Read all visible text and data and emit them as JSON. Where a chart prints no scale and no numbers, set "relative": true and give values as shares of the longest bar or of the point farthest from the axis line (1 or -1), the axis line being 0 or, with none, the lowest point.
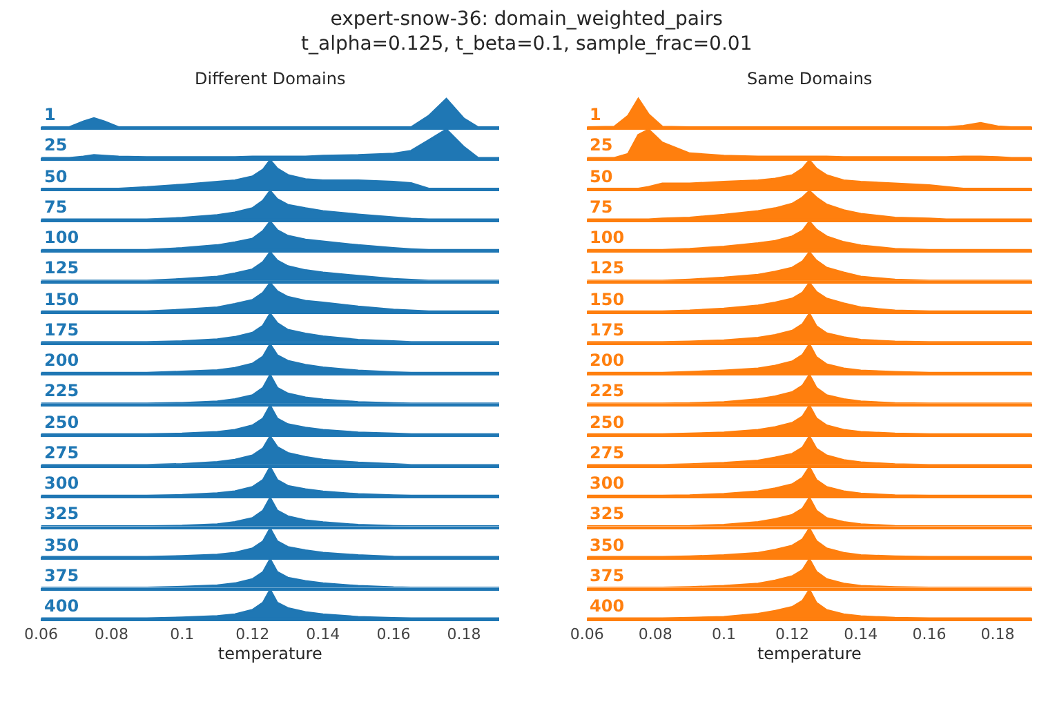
{
  "chart_data": [
    {
      "type": "area",
      "relative": true,
      "title": "Different Domains",
      "annotations": [
        "expert-snow-36: domain_weighted_pairs\nt_alpha=0.125, t_beta=0.1, sample_frac=0.01"
      ],
      "xlim": [
        0.06,
        0.19
      ],
      "tick_labels": false,
      "x": [
        0.06,
        0.068,
        0.072,
        0.075,
        0.078,
        0.082,
        0.09,
        0.1,
        0.11,
        0.115,
        0.12,
        0.123,
        0.125,
        0.127,
        0.13,
        0.135,
        0.14,
        0.15,
        0.16,
        0.165,
        0.17,
        0.175,
        0.18,
        0.184,
        0.19
      ],
      "series": [
        {
          "name": "1",
          "color": "#1f77b4",
          "values": [
            0,
            0,
            0.2,
            0.32,
            0.2,
            0,
            0,
            0,
            0,
            0,
            0,
            0,
            0,
            0,
            0,
            0,
            0,
            0,
            0,
            0,
            0.4,
            1,
            0.3,
            0,
            0
          ]
        }
      ]
    },
    {
      "type": "area",
      "relative": true,
      "xlim": [
        0.06,
        0.19
      ],
      "tick_labels": false,
      "x": [
        0.06,
        0.068,
        0.072,
        0.075,
        0.078,
        0.082,
        0.09,
        0.1,
        0.11,
        0.115,
        0.12,
        0.123,
        0.125,
        0.127,
        0.13,
        0.135,
        0.14,
        0.15,
        0.16,
        0.165,
        0.17,
        0.175,
        0.18,
        0.184,
        0.19
      ],
      "series": [
        {
          "name": "25",
          "color": "#1f77b4",
          "values": [
            0,
            0,
            0.05,
            0.1,
            0.08,
            0.05,
            0.03,
            0.03,
            0.03,
            0.03,
            0.05,
            0.05,
            0.05,
            0.05,
            0.05,
            0.05,
            0.08,
            0.1,
            0.15,
            0.25,
            0.62,
            1,
            0.38,
            0,
            0
          ]
        }
      ]
    },
    {
      "type": "area",
      "relative": true,
      "xlim": [
        0.06,
        0.19
      ],
      "tick_labels": false,
      "x": [
        0.06,
        0.068,
        0.072,
        0.075,
        0.078,
        0.082,
        0.09,
        0.1,
        0.11,
        0.115,
        0.12,
        0.123,
        0.125,
        0.127,
        0.13,
        0.135,
        0.14,
        0.15,
        0.16,
        0.165,
        0.17,
        0.175,
        0.18,
        0.184,
        0.19
      ],
      "series": [
        {
          "name": "50",
          "color": "#1f77b4",
          "values": [
            0,
            0,
            0,
            0,
            0,
            0,
            0.05,
            0.14,
            0.24,
            0.29,
            0.43,
            0.67,
            1,
            0.71,
            0.48,
            0.33,
            0.29,
            0.29,
            0.24,
            0.19,
            0,
            0,
            0,
            0,
            0
          ]
        }
      ]
    },
    {
      "type": "area",
      "relative": true,
      "xlim": [
        0.06,
        0.19
      ],
      "tick_labels": false,
      "x": [
        0.06,
        0.068,
        0.072,
        0.075,
        0.078,
        0.082,
        0.09,
        0.1,
        0.11,
        0.115,
        0.12,
        0.123,
        0.125,
        0.127,
        0.13,
        0.135,
        0.14,
        0.15,
        0.16,
        0.165,
        0.17,
        0.175,
        0.18,
        0.184,
        0.19
      ],
      "series": [
        {
          "name": "75",
          "color": "#1f77b4",
          "values": [
            0,
            0,
            0,
            0,
            0,
            0,
            0,
            0.05,
            0.15,
            0.24,
            0.39,
            0.66,
            1,
            0.71,
            0.51,
            0.39,
            0.29,
            0.17,
            0.07,
            0.02,
            0,
            0,
            0,
            0,
            0
          ]
        }
      ]
    },
    {
      "type": "area",
      "relative": true,
      "xlim": [
        0.06,
        0.19
      ],
      "tick_labels": false,
      "x": [
        0.06,
        0.068,
        0.072,
        0.075,
        0.078,
        0.082,
        0.09,
        0.1,
        0.11,
        0.115,
        0.12,
        0.123,
        0.125,
        0.127,
        0.13,
        0.135,
        0.14,
        0.15,
        0.16,
        0.165,
        0.17,
        0.175,
        0.18,
        0.184,
        0.19
      ],
      "series": [
        {
          "name": "100",
          "color": "#1f77b4",
          "values": [
            0,
            0,
            0,
            0,
            0,
            0,
            0,
            0.07,
            0.17,
            0.27,
            0.4,
            0.67,
            1,
            0.7,
            0.5,
            0.37,
            0.3,
            0.17,
            0.07,
            0.03,
            0,
            0,
            0,
            0,
            0
          ]
        }
      ]
    },
    {
      "type": "area",
      "relative": true,
      "xlim": [
        0.06,
        0.19
      ],
      "tick_labels": false,
      "x": [
        0.06,
        0.068,
        0.072,
        0.075,
        0.078,
        0.082,
        0.09,
        0.1,
        0.11,
        0.115,
        0.12,
        0.123,
        0.125,
        0.127,
        0.13,
        0.135,
        0.14,
        0.15,
        0.16,
        0.165,
        0.17,
        0.175,
        0.18,
        0.184,
        0.19
      ],
      "series": [
        {
          "name": "125",
          "color": "#1f77b4",
          "values": [
            0,
            0,
            0,
            0,
            0,
            0,
            0,
            0.06,
            0.14,
            0.26,
            0.4,
            0.66,
            1,
            0.71,
            0.51,
            0.37,
            0.29,
            0.17,
            0.06,
            0.03,
            0,
            0,
            0,
            0,
            0
          ]
        }
      ]
    },
    {
      "type": "area",
      "relative": true,
      "xlim": [
        0.06,
        0.19
      ],
      "tick_labels": false,
      "x": [
        0.06,
        0.068,
        0.072,
        0.075,
        0.078,
        0.082,
        0.09,
        0.1,
        0.11,
        0.115,
        0.12,
        0.123,
        0.125,
        0.127,
        0.13,
        0.135,
        0.14,
        0.15,
        0.16,
        0.165,
        0.17,
        0.175,
        0.18,
        0.184,
        0.19
      ],
      "series": [
        {
          "name": "150",
          "color": "#1f77b4",
          "values": [
            0,
            0,
            0,
            0,
            0,
            0,
            0,
            0.06,
            0.14,
            0.26,
            0.4,
            0.66,
            1,
            0.71,
            0.51,
            0.37,
            0.31,
            0.17,
            0.06,
            0.03,
            0,
            0,
            0,
            0,
            0
          ]
        }
      ]
    },
    {
      "type": "area",
      "relative": true,
      "xlim": [
        0.06,
        0.19
      ],
      "tick_labels": false,
      "x": [
        0.06,
        0.068,
        0.072,
        0.075,
        0.078,
        0.082,
        0.09,
        0.1,
        0.11,
        0.115,
        0.12,
        0.123,
        0.125,
        0.127,
        0.13,
        0.135,
        0.14,
        0.15,
        0.16,
        0.165,
        0.17,
        0.175,
        0.18,
        0.184,
        0.19
      ],
      "series": [
        {
          "name": "175",
          "color": "#1f77b4",
          "values": [
            0,
            0,
            0,
            0,
            0,
            0,
            0,
            0.03,
            0.1,
            0.18,
            0.33,
            0.58,
            1,
            0.67,
            0.43,
            0.3,
            0.2,
            0.08,
            0.03,
            0,
            0,
            0,
            0,
            0,
            0
          ]
        }
      ]
    },
    {
      "type": "area",
      "relative": true,
      "xlim": [
        0.06,
        0.19
      ],
      "tick_labels": false,
      "x": [
        0.06,
        0.068,
        0.072,
        0.075,
        0.078,
        0.082,
        0.09,
        0.1,
        0.11,
        0.115,
        0.12,
        0.123,
        0.125,
        0.127,
        0.13,
        0.135,
        0.14,
        0.15,
        0.16,
        0.165,
        0.17,
        0.175,
        0.18,
        0.184,
        0.19
      ],
      "series": [
        {
          "name": "200",
          "color": "#1f77b4",
          "values": [
            0,
            0,
            0,
            0,
            0,
            0,
            0,
            0.04,
            0.09,
            0.17,
            0.32,
            0.57,
            1,
            0.62,
            0.42,
            0.28,
            0.19,
            0.08,
            0.02,
            0,
            0,
            0,
            0,
            0,
            0
          ]
        }
      ]
    },
    {
      "type": "area",
      "relative": true,
      "xlim": [
        0.06,
        0.19
      ],
      "tick_labels": false,
      "x": [
        0.06,
        0.068,
        0.072,
        0.075,
        0.078,
        0.082,
        0.09,
        0.1,
        0.11,
        0.115,
        0.12,
        0.123,
        0.125,
        0.127,
        0.13,
        0.135,
        0.14,
        0.15,
        0.16,
        0.165,
        0.17,
        0.175,
        0.18,
        0.184,
        0.19
      ],
      "series": [
        {
          "name": "225",
          "color": "#1f77b4",
          "values": [
            0,
            0,
            0,
            0,
            0,
            0,
            0,
            0.02,
            0.07,
            0.15,
            0.29,
            0.55,
            1,
            0.55,
            0.35,
            0.21,
            0.14,
            0.05,
            0.01,
            0,
            0,
            0,
            0,
            0,
            0
          ]
        }
      ]
    },
    {
      "type": "area",
      "relative": true,
      "xlim": [
        0.06,
        0.19
      ],
      "tick_labels": false,
      "x": [
        0.06,
        0.068,
        0.072,
        0.075,
        0.078,
        0.082,
        0.09,
        0.1,
        0.11,
        0.115,
        0.12,
        0.123,
        0.125,
        0.127,
        0.13,
        0.135,
        0.14,
        0.15,
        0.16,
        0.165,
        0.17,
        0.175,
        0.18,
        0.184,
        0.19
      ],
      "series": [
        {
          "name": "250",
          "color": "#1f77b4",
          "values": [
            0,
            0,
            0,
            0,
            0,
            0,
            0,
            0.02,
            0.08,
            0.15,
            0.31,
            0.55,
            1,
            0.55,
            0.35,
            0.23,
            0.15,
            0.06,
            0.02,
            0,
            0,
            0,
            0,
            0,
            0
          ]
        }
      ]
    },
    {
      "type": "area",
      "relative": true,
      "xlim": [
        0.06,
        0.19
      ],
      "tick_labels": false,
      "x": [
        0.06,
        0.068,
        0.072,
        0.075,
        0.078,
        0.082,
        0.09,
        0.1,
        0.11,
        0.115,
        0.12,
        0.123,
        0.125,
        0.127,
        0.13,
        0.135,
        0.14,
        0.15,
        0.16,
        0.165,
        0.17,
        0.175,
        0.18,
        0.184,
        0.19
      ],
      "series": [
        {
          "name": "275",
          "color": "#1f77b4",
          "values": [
            0,
            0,
            0,
            0,
            0,
            0,
            0,
            0.03,
            0.1,
            0.18,
            0.33,
            0.58,
            1,
            0.63,
            0.42,
            0.28,
            0.18,
            0.08,
            0.03,
            0,
            0,
            0,
            0,
            0,
            0
          ]
        }
      ]
    },
    {
      "type": "area",
      "relative": true,
      "xlim": [
        0.06,
        0.19
      ],
      "tick_labels": false,
      "x": [
        0.06,
        0.068,
        0.072,
        0.075,
        0.078,
        0.082,
        0.09,
        0.1,
        0.11,
        0.115,
        0.12,
        0.123,
        0.125,
        0.127,
        0.13,
        0.135,
        0.14,
        0.15,
        0.16,
        0.165,
        0.17,
        0.175,
        0.18,
        0.184,
        0.19
      ],
      "series": [
        {
          "name": "300",
          "color": "#1f77b4",
          "values": [
            0,
            0,
            0,
            0,
            0,
            0,
            0,
            0.02,
            0.08,
            0.15,
            0.3,
            0.55,
            1,
            0.55,
            0.34,
            0.22,
            0.14,
            0.05,
            0.01,
            0,
            0,
            0,
            0,
            0,
            0
          ]
        }
      ]
    },
    {
      "type": "area",
      "relative": true,
      "xlim": [
        0.06,
        0.19
      ],
      "tick_labels": false,
      "x": [
        0.06,
        0.068,
        0.072,
        0.075,
        0.078,
        0.082,
        0.09,
        0.1,
        0.11,
        0.115,
        0.12,
        0.123,
        0.125,
        0.127,
        0.13,
        0.135,
        0.14,
        0.15,
        0.16,
        0.165,
        0.17,
        0.175,
        0.18,
        0.184,
        0.19
      ],
      "series": [
        {
          "name": "325",
          "color": "#1f77b4",
          "values": [
            0,
            0,
            0,
            0,
            0,
            0,
            0,
            0.02,
            0.07,
            0.15,
            0.29,
            0.55,
            1,
            0.55,
            0.35,
            0.21,
            0.14,
            0.05,
            0.01,
            0,
            0,
            0,
            0,
            0,
            0
          ]
        }
      ]
    },
    {
      "type": "area",
      "relative": true,
      "xlim": [
        0.06,
        0.19
      ],
      "tick_labels": false,
      "x": [
        0.06,
        0.068,
        0.072,
        0.075,
        0.078,
        0.082,
        0.09,
        0.1,
        0.11,
        0.115,
        0.12,
        0.123,
        0.125,
        0.127,
        0.13,
        0.135,
        0.14,
        0.15,
        0.16,
        0.165,
        0.17,
        0.175,
        0.18,
        0.184,
        0.19
      ],
      "series": [
        {
          "name": "350",
          "color": "#1f77b4",
          "values": [
            0,
            0,
            0,
            0,
            0,
            0,
            0,
            0.03,
            0.08,
            0.15,
            0.3,
            0.55,
            1,
            0.55,
            0.35,
            0.23,
            0.15,
            0.06,
            0.01,
            0,
            0,
            0,
            0,
            0,
            0
          ]
        }
      ]
    },
    {
      "type": "area",
      "relative": true,
      "xlim": [
        0.06,
        0.19
      ],
      "tick_labels": false,
      "x": [
        0.06,
        0.068,
        0.072,
        0.075,
        0.078,
        0.082,
        0.09,
        0.1,
        0.11,
        0.115,
        0.12,
        0.123,
        0.125,
        0.127,
        0.13,
        0.135,
        0.14,
        0.15,
        0.16,
        0.165,
        0.17,
        0.175,
        0.18,
        0.184,
        0.19
      ],
      "series": [
        {
          "name": "375",
          "color": "#1f77b4",
          "values": [
            0,
            0,
            0,
            0,
            0,
            0,
            0,
            0.03,
            0.08,
            0.15,
            0.3,
            0.55,
            1,
            0.55,
            0.35,
            0.23,
            0.15,
            0.06,
            0.01,
            0,
            0,
            0,
            0,
            0,
            0
          ]
        }
      ]
    },
    {
      "type": "area",
      "relative": true,
      "xlabel": "temperature",
      "xlim": [
        0.06,
        0.19
      ],
      "xticks": [
        0.06,
        0.08,
        0.1,
        0.12,
        0.14,
        0.16,
        0.18
      ],
      "tick_labels": "x",
      "x": [
        0.06,
        0.068,
        0.072,
        0.075,
        0.078,
        0.082,
        0.09,
        0.1,
        0.11,
        0.115,
        0.12,
        0.123,
        0.125,
        0.127,
        0.13,
        0.135,
        0.14,
        0.15,
        0.16,
        0.165,
        0.17,
        0.175,
        0.18,
        0.184,
        0.19
      ],
      "series": [
        {
          "name": "400",
          "color": "#1f77b4",
          "values": [
            0,
            0,
            0,
            0,
            0,
            0,
            0,
            0.03,
            0.08,
            0.14,
            0.3,
            0.55,
            1,
            0.55,
            0.36,
            0.22,
            0.14,
            0.05,
            0.01,
            0,
            0,
            0,
            0,
            0,
            0
          ]
        }
      ]
    },
    {
      "type": "area",
      "relative": true,
      "title": "Same Domains",
      "xlim": [
        0.06,
        0.19
      ],
      "tick_labels": false,
      "x": [
        0.06,
        0.068,
        0.072,
        0.075,
        0.078,
        0.082,
        0.09,
        0.1,
        0.11,
        0.115,
        0.12,
        0.123,
        0.125,
        0.127,
        0.13,
        0.135,
        0.14,
        0.15,
        0.16,
        0.165,
        0.17,
        0.175,
        0.18,
        0.184,
        0.19
      ],
      "series": [
        {
          "name": "1",
          "color": "#ff7f0e",
          "values": [
            0,
            0.02,
            0.4,
            1,
            0.45,
            0.02,
            0,
            0,
            0,
            0,
            0,
            0,
            0,
            0,
            0,
            0,
            0,
            0,
            0,
            0,
            0.05,
            0.15,
            0.03,
            0,
            0
          ]
        }
      ]
    },
    {
      "type": "area",
      "relative": true,
      "xlim": [
        0.06,
        0.19
      ],
      "tick_labels": false,
      "x": [
        0.06,
        0.068,
        0.072,
        0.075,
        0.078,
        0.082,
        0.09,
        0.1,
        0.11,
        0.115,
        0.12,
        0.123,
        0.125,
        0.127,
        0.13,
        0.135,
        0.14,
        0.15,
        0.16,
        0.165,
        0.17,
        0.175,
        0.18,
        0.184,
        0.19
      ],
      "series": [
        {
          "name": "25",
          "color": "#ff7f0e",
          "values": [
            0,
            0,
            0.14,
            0.81,
            1,
            0.54,
            0.16,
            0.08,
            0.05,
            0.05,
            0.05,
            0.05,
            0.05,
            0.05,
            0.05,
            0.03,
            0.03,
            0.03,
            0.03,
            0.03,
            0.05,
            0.05,
            0.03,
            0,
            0
          ]
        }
      ]
    },
    {
      "type": "area",
      "relative": true,
      "xlim": [
        0.06,
        0.19
      ],
      "tick_labels": false,
      "x": [
        0.06,
        0.068,
        0.072,
        0.075,
        0.078,
        0.082,
        0.09,
        0.1,
        0.11,
        0.115,
        0.12,
        0.123,
        0.125,
        0.127,
        0.13,
        0.135,
        0.14,
        0.15,
        0.16,
        0.165,
        0.17,
        0.175,
        0.18,
        0.184,
        0.19
      ],
      "series": [
        {
          "name": "50",
          "color": "#ff7f0e",
          "values": [
            0,
            0,
            0,
            0,
            0.06,
            0.18,
            0.18,
            0.24,
            0.29,
            0.35,
            0.47,
            0.71,
            1,
            0.71,
            0.47,
            0.29,
            0.24,
            0.18,
            0.12,
            0.06,
            0,
            0,
            0,
            0,
            0
          ]
        }
      ]
    },
    {
      "type": "area",
      "relative": true,
      "xlim": [
        0.06,
        0.19
      ],
      "tick_labels": false,
      "x": [
        0.06,
        0.068,
        0.072,
        0.075,
        0.078,
        0.082,
        0.09,
        0.1,
        0.11,
        0.115,
        0.12,
        0.123,
        0.125,
        0.127,
        0.13,
        0.135,
        0.14,
        0.15,
        0.16,
        0.165,
        0.17,
        0.175,
        0.18,
        0.184,
        0.19
      ],
      "series": [
        {
          "name": "75",
          "color": "#ff7f0e",
          "values": [
            0,
            0,
            0,
            0,
            0,
            0.03,
            0.06,
            0.16,
            0.29,
            0.39,
            0.55,
            0.77,
            1,
            0.77,
            0.52,
            0.32,
            0.19,
            0.06,
            0.03,
            0,
            0,
            0,
            0,
            0,
            0
          ]
        }
      ]
    },
    {
      "type": "area",
      "relative": true,
      "xlim": [
        0.06,
        0.19
      ],
      "tick_labels": false,
      "x": [
        0.06,
        0.068,
        0.072,
        0.075,
        0.078,
        0.082,
        0.09,
        0.1,
        0.11,
        0.115,
        0.12,
        0.123,
        0.125,
        0.127,
        0.13,
        0.135,
        0.14,
        0.15,
        0.16,
        0.165,
        0.17,
        0.175,
        0.18,
        0.184,
        0.19
      ],
      "series": [
        {
          "name": "100",
          "color": "#ff7f0e",
          "values": [
            0,
            0,
            0,
            0,
            0,
            0,
            0.04,
            0.12,
            0.24,
            0.32,
            0.48,
            0.68,
            1,
            0.72,
            0.48,
            0.28,
            0.16,
            0.04,
            0,
            0,
            0,
            0,
            0,
            0,
            0
          ]
        }
      ]
    },
    {
      "type": "area",
      "relative": true,
      "xlim": [
        0.06,
        0.19
      ],
      "tick_labels": false,
      "x": [
        0.06,
        0.068,
        0.072,
        0.075,
        0.078,
        0.082,
        0.09,
        0.1,
        0.11,
        0.115,
        0.12,
        0.123,
        0.125,
        0.127,
        0.13,
        0.135,
        0.14,
        0.15,
        0.16,
        0.165,
        0.17,
        0.175,
        0.18,
        0.184,
        0.19
      ],
      "series": [
        {
          "name": "125",
          "color": "#ff7f0e",
          "values": [
            0,
            0,
            0,
            0,
            0,
            0,
            0.04,
            0.11,
            0.21,
            0.32,
            0.46,
            0.68,
            1,
            0.71,
            0.46,
            0.29,
            0.14,
            0.04,
            0,
            0,
            0,
            0,
            0,
            0,
            0
          ]
        }
      ]
    },
    {
      "type": "area",
      "relative": true,
      "xlim": [
        0.06,
        0.19
      ],
      "tick_labels": false,
      "x": [
        0.06,
        0.068,
        0.072,
        0.075,
        0.078,
        0.082,
        0.09,
        0.1,
        0.11,
        0.115,
        0.12,
        0.123,
        0.125,
        0.127,
        0.13,
        0.135,
        0.14,
        0.15,
        0.16,
        0.165,
        0.17,
        0.175,
        0.18,
        0.184,
        0.19
      ],
      "series": [
        {
          "name": "150",
          "color": "#ff7f0e",
          "values": [
            0,
            0,
            0,
            0,
            0,
            0,
            0.03,
            0.1,
            0.21,
            0.31,
            0.45,
            0.66,
            1,
            0.69,
            0.45,
            0.28,
            0.14,
            0.03,
            0,
            0,
            0,
            0,
            0,
            0,
            0
          ]
        }
      ]
    },
    {
      "type": "area",
      "relative": true,
      "xlim": [
        0.06,
        0.19
      ],
      "tick_labels": false,
      "x": [
        0.06,
        0.068,
        0.072,
        0.075,
        0.078,
        0.082,
        0.09,
        0.1,
        0.11,
        0.115,
        0.12,
        0.123,
        0.125,
        0.127,
        0.13,
        0.135,
        0.14,
        0.15,
        0.16,
        0.165,
        0.17,
        0.175,
        0.18,
        0.184,
        0.19
      ],
      "series": [
        {
          "name": "175",
          "color": "#ff7f0e",
          "values": [
            0,
            0,
            0,
            0,
            0,
            0,
            0.02,
            0.06,
            0.15,
            0.25,
            0.4,
            0.63,
            1,
            0.56,
            0.31,
            0.17,
            0.08,
            0.02,
            0,
            0,
            0,
            0,
            0,
            0,
            0
          ]
        }
      ]
    },
    {
      "type": "area",
      "relative": true,
      "xlim": [
        0.06,
        0.19
      ],
      "tick_labels": false,
      "x": [
        0.06,
        0.068,
        0.072,
        0.075,
        0.078,
        0.082,
        0.09,
        0.1,
        0.11,
        0.115,
        0.12,
        0.123,
        0.125,
        0.127,
        0.13,
        0.135,
        0.14,
        0.15,
        0.16,
        0.165,
        0.17,
        0.175,
        0.18,
        0.184,
        0.19
      ],
      "series": [
        {
          "name": "200",
          "color": "#ff7f0e",
          "values": [
            0,
            0,
            0,
            0,
            0,
            0,
            0.03,
            0.08,
            0.15,
            0.25,
            0.4,
            0.63,
            1,
            0.55,
            0.3,
            0.15,
            0.08,
            0.03,
            0,
            0,
            0,
            0,
            0,
            0,
            0
          ]
        }
      ]
    },
    {
      "type": "area",
      "relative": true,
      "xlim": [
        0.06,
        0.19
      ],
      "tick_labels": false,
      "x": [
        0.06,
        0.068,
        0.072,
        0.075,
        0.078,
        0.082,
        0.09,
        0.1,
        0.11,
        0.115,
        0.12,
        0.123,
        0.125,
        0.127,
        0.13,
        0.135,
        0.14,
        0.15,
        0.16,
        0.165,
        0.17,
        0.175,
        0.18,
        0.184,
        0.19
      ],
      "series": [
        {
          "name": "225",
          "color": "#ff7f0e",
          "values": [
            0,
            0,
            0,
            0,
            0,
            0,
            0.01,
            0.05,
            0.15,
            0.25,
            0.4,
            0.63,
            1,
            0.55,
            0.29,
            0.15,
            0.07,
            0.01,
            0,
            0,
            0,
            0,
            0,
            0,
            0
          ]
        }
      ]
    },
    {
      "type": "area",
      "relative": true,
      "xlim": [
        0.06,
        0.19
      ],
      "tick_labels": false,
      "x": [
        0.06,
        0.068,
        0.072,
        0.075,
        0.078,
        0.082,
        0.09,
        0.1,
        0.11,
        0.115,
        0.12,
        0.123,
        0.125,
        0.127,
        0.13,
        0.135,
        0.14,
        0.15,
        0.16,
        0.165,
        0.17,
        0.175,
        0.18,
        0.184,
        0.19
      ],
      "series": [
        {
          "name": "250",
          "color": "#ff7f0e",
          "values": [
            0,
            0,
            0,
            0,
            0,
            0,
            0.02,
            0.06,
            0.15,
            0.25,
            0.4,
            0.62,
            1,
            0.56,
            0.31,
            0.15,
            0.08,
            0.02,
            0,
            0,
            0,
            0,
            0,
            0,
            0
          ]
        }
      ]
    },
    {
      "type": "area",
      "relative": true,
      "xlim": [
        0.06,
        0.19
      ],
      "tick_labels": false,
      "x": [
        0.06,
        0.068,
        0.072,
        0.075,
        0.078,
        0.082,
        0.09,
        0.1,
        0.11,
        0.115,
        0.12,
        0.123,
        0.125,
        0.127,
        0.13,
        0.135,
        0.14,
        0.15,
        0.16,
        0.165,
        0.17,
        0.175,
        0.18,
        0.184,
        0.19
      ],
      "series": [
        {
          "name": "275",
          "color": "#ff7f0e",
          "values": [
            0,
            0,
            0,
            0,
            0,
            0,
            0.02,
            0.07,
            0.15,
            0.26,
            0.39,
            0.61,
            1,
            0.57,
            0.33,
            0.17,
            0.09,
            0.02,
            0,
            0,
            0,
            0,
            0,
            0,
            0
          ]
        }
      ]
    },
    {
      "type": "area",
      "relative": true,
      "xlim": [
        0.06,
        0.19
      ],
      "tick_labels": false,
      "x": [
        0.06,
        0.068,
        0.072,
        0.075,
        0.078,
        0.082,
        0.09,
        0.1,
        0.11,
        0.115,
        0.12,
        0.123,
        0.125,
        0.127,
        0.13,
        0.135,
        0.14,
        0.15,
        0.16,
        0.165,
        0.17,
        0.175,
        0.18,
        0.184,
        0.19
      ],
      "series": [
        {
          "name": "300",
          "color": "#ff7f0e",
          "values": [
            0,
            0,
            0,
            0,
            0,
            0,
            0.01,
            0.06,
            0.15,
            0.25,
            0.4,
            0.63,
            1,
            0.55,
            0.3,
            0.15,
            0.07,
            0.01,
            0,
            0,
            0,
            0,
            0,
            0,
            0
          ]
        }
      ]
    },
    {
      "type": "area",
      "relative": true,
      "xlim": [
        0.06,
        0.19
      ],
      "tick_labels": false,
      "x": [
        0.06,
        0.068,
        0.072,
        0.075,
        0.078,
        0.082,
        0.09,
        0.1,
        0.11,
        0.115,
        0.12,
        0.123,
        0.125,
        0.127,
        0.13,
        0.135,
        0.14,
        0.15,
        0.16,
        0.165,
        0.17,
        0.175,
        0.18,
        0.184,
        0.19
      ],
      "series": [
        {
          "name": "325",
          "color": "#ff7f0e",
          "values": [
            0,
            0,
            0,
            0,
            0,
            0,
            0.01,
            0.05,
            0.15,
            0.25,
            0.4,
            0.62,
            1,
            0.55,
            0.29,
            0.15,
            0.07,
            0.01,
            0,
            0,
            0,
            0,
            0,
            0,
            0
          ]
        }
      ]
    },
    {
      "type": "area",
      "relative": true,
      "xlim": [
        0.06,
        0.19
      ],
      "tick_labels": false,
      "x": [
        0.06,
        0.068,
        0.072,
        0.075,
        0.078,
        0.082,
        0.09,
        0.1,
        0.11,
        0.115,
        0.12,
        0.123,
        0.125,
        0.127,
        0.13,
        0.135,
        0.14,
        0.15,
        0.16,
        0.165,
        0.17,
        0.175,
        0.18,
        0.184,
        0.19
      ],
      "series": [
        {
          "name": "350",
          "color": "#ff7f0e",
          "values": [
            0,
            0,
            0,
            0,
            0,
            0,
            0.02,
            0.06,
            0.14,
            0.25,
            0.4,
            0.62,
            1,
            0.56,
            0.3,
            0.14,
            0.06,
            0.02,
            0,
            0,
            0,
            0,
            0,
            0,
            0
          ]
        }
      ]
    },
    {
      "type": "area",
      "relative": true,
      "xlim": [
        0.06,
        0.19
      ],
      "tick_labels": false,
      "x": [
        0.06,
        0.068,
        0.072,
        0.075,
        0.078,
        0.082,
        0.09,
        0.1,
        0.11,
        0.115,
        0.12,
        0.123,
        0.125,
        0.127,
        0.13,
        0.135,
        0.14,
        0.15,
        0.16,
        0.165,
        0.17,
        0.175,
        0.18,
        0.184,
        0.19
      ],
      "series": [
        {
          "name": "375",
          "color": "#ff7f0e",
          "values": [
            0,
            0,
            0,
            0,
            0,
            0,
            0.02,
            0.06,
            0.14,
            0.25,
            0.4,
            0.62,
            1,
            0.56,
            0.3,
            0.14,
            0.06,
            0.02,
            0,
            0,
            0,
            0,
            0,
            0,
            0
          ]
        }
      ]
    },
    {
      "type": "area",
      "relative": true,
      "xlabel": "temperature",
      "xlim": [
        0.06,
        0.19
      ],
      "xticks": [
        0.06,
        0.08,
        0.1,
        0.12,
        0.14,
        0.16,
        0.18
      ],
      "tick_labels": "x",
      "x": [
        0.06,
        0.068,
        0.072,
        0.075,
        0.078,
        0.082,
        0.09,
        0.1,
        0.11,
        0.115,
        0.12,
        0.123,
        0.125,
        0.127,
        0.13,
        0.135,
        0.14,
        0.15,
        0.16,
        0.165,
        0.17,
        0.175,
        0.18,
        0.184,
        0.19
      ],
      "series": [
        {
          "name": "400",
          "color": "#ff7f0e",
          "values": [
            0,
            0,
            0,
            0,
            0,
            0,
            0.02,
            0.05,
            0.16,
            0.26,
            0.4,
            0.62,
            1,
            0.55,
            0.29,
            0.14,
            0.07,
            0.02,
            0,
            0,
            0,
            0,
            0,
            0,
            0
          ]
        }
      ]
    }
  ]
}
